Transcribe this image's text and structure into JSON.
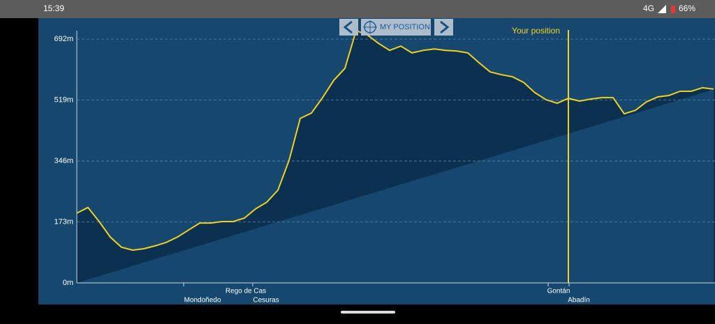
{
  "status_bar": {
    "time": "15:39",
    "network": "4G",
    "battery": "66%"
  },
  "toolbar": {
    "my_position": "MY POSITION"
  },
  "chart_data": {
    "type": "area",
    "values": [
      198,
      214,
      174,
      130,
      101,
      93,
      97,
      105,
      115,
      130,
      150,
      170,
      170,
      174,
      174,
      184,
      210,
      229,
      263,
      348,
      467,
      482,
      526,
      575,
      609,
      716,
      704,
      680,
      660,
      672,
      653,
      660,
      664,
      660,
      658,
      653,
      625,
      599,
      591,
      585,
      569,
      540,
      520,
      510,
      524,
      516,
      522,
      526,
      526,
      480,
      490,
      514,
      528,
      532,
      544,
      544,
      554,
      550
    ],
    "ylim": [
      0,
      716
    ],
    "yticks": [
      {
        "value": 0,
        "label": "0m"
      },
      {
        "value": 173,
        "label": "173m"
      },
      {
        "value": 346,
        "label": "346m"
      },
      {
        "value": 519,
        "label": "519m"
      },
      {
        "value": 692,
        "label": "692m"
      }
    ],
    "grid": true,
    "color": "#f2d024",
    "marker_label": "Your position",
    "places": [
      "Mondoñedo",
      "Rego de Cas",
      "Cesuras",
      "Gontán",
      "Abadín"
    ]
  }
}
